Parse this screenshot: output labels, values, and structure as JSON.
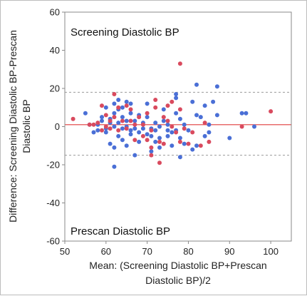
{
  "chart_data": {
    "type": "scatter",
    "xlabel_lines": [
      "Mean: (Screening Diastolic BP+Prescan",
      "Diastolic BP)/2"
    ],
    "ylabel_lines": [
      "Difference: Screening Diastolic BP-Prescan",
      "Diastolic BP"
    ],
    "xlim": [
      50,
      105
    ],
    "ylim": [
      -60,
      60
    ],
    "x_ticks": [
      50,
      60,
      70,
      80,
      90,
      100
    ],
    "y_ticks": [
      -60,
      -40,
      -20,
      0,
      20,
      40,
      60
    ],
    "annotations": {
      "top": "Screening Diastolic BP",
      "bottom": "Prescan Diastolic BP"
    },
    "reference_lines": {
      "mean_difference": 1,
      "upper_limit": 18,
      "lower_limit": -15
    },
    "colors": {
      "blue": "#4a6fd6",
      "red": "#d94a5e",
      "mean_line": "#e03c3c",
      "limit_line": "#9a9a9a"
    },
    "series": [
      {
        "color": "blue",
        "points": [
          [
            55,
            7
          ],
          [
            56,
            1
          ],
          [
            57,
            -3
          ],
          [
            58,
            1
          ],
          [
            58,
            -2
          ],
          [
            59,
            3
          ],
          [
            59,
            5
          ],
          [
            60,
            10
          ],
          [
            60,
            -1
          ],
          [
            60,
            -3
          ],
          [
            61,
            -9
          ],
          [
            61,
            2
          ],
          [
            61,
            4
          ],
          [
            62,
            -11
          ],
          [
            62,
            0
          ],
          [
            62,
            7
          ],
          [
            62,
            12
          ],
          [
            62,
            -21
          ],
          [
            63,
            -5
          ],
          [
            63,
            2
          ],
          [
            63,
            9
          ],
          [
            63,
            14
          ],
          [
            64,
            5
          ],
          [
            64,
            -1
          ],
          [
            64,
            -7
          ],
          [
            64,
            10
          ],
          [
            65,
            -10
          ],
          [
            65,
            0
          ],
          [
            65,
            3
          ],
          [
            65,
            13
          ],
          [
            66,
            -4
          ],
          [
            66,
            7
          ],
          [
            66,
            12
          ],
          [
            66,
            -2
          ],
          [
            67,
            -1
          ],
          [
            67,
            -15
          ],
          [
            67,
            3
          ],
          [
            68,
            -3
          ],
          [
            68,
            6
          ],
          [
            68,
            -8
          ],
          [
            69,
            -1
          ],
          [
            69,
            2
          ],
          [
            70,
            -4
          ],
          [
            70,
            12
          ],
          [
            70,
            5
          ],
          [
            71,
            -13
          ],
          [
            71,
            -1
          ],
          [
            71,
            -5
          ],
          [
            72,
            2
          ],
          [
            72,
            -8
          ],
          [
            72,
            -2
          ],
          [
            73,
            -11
          ],
          [
            73,
            -6
          ],
          [
            73,
            0
          ],
          [
            74,
            3
          ],
          [
            74,
            9
          ],
          [
            75,
            -2
          ],
          [
            75,
            -5
          ],
          [
            75,
            1
          ],
          [
            76,
            -10
          ],
          [
            76,
            -3
          ],
          [
            77,
            15
          ],
          [
            77,
            17
          ],
          [
            77,
            -2
          ],
          [
            77,
            7
          ],
          [
            78,
            -6
          ],
          [
            78,
            -16
          ],
          [
            78,
            4
          ],
          [
            79,
            1
          ],
          [
            79,
            -9
          ],
          [
            80,
            -2
          ],
          [
            81,
            -12
          ],
          [
            81,
            13
          ],
          [
            82,
            22
          ],
          [
            82,
            6
          ],
          [
            82,
            -10
          ],
          [
            83,
            5
          ],
          [
            84,
            -5
          ],
          [
            84,
            11
          ],
          [
            85,
            1
          ],
          [
            85,
            -3
          ],
          [
            86,
            13
          ],
          [
            87,
            6
          ],
          [
            87,
            21
          ],
          [
            90,
            -6
          ],
          [
            93,
            7
          ],
          [
            94,
            7
          ],
          [
            96,
            0
          ]
        ]
      },
      {
        "color": "red",
        "points": [
          [
            52,
            4
          ],
          [
            56,
            1
          ],
          [
            57,
            1
          ],
          [
            58,
            2
          ],
          [
            59,
            11
          ],
          [
            59,
            -2
          ],
          [
            60,
            6
          ],
          [
            60,
            0
          ],
          [
            61,
            3
          ],
          [
            61,
            -1
          ],
          [
            62,
            17
          ],
          [
            62,
            5
          ],
          [
            63,
            -2
          ],
          [
            63,
            10
          ],
          [
            64,
            3
          ],
          [
            65,
            11
          ],
          [
            65,
            -1
          ],
          [
            66,
            9
          ],
          [
            66,
            3
          ],
          [
            67,
            1
          ],
          [
            67,
            -7
          ],
          [
            68,
            5
          ],
          [
            69,
            1
          ],
          [
            69,
            -5
          ],
          [
            70,
            -7
          ],
          [
            70,
            7
          ],
          [
            71,
            -15
          ],
          [
            71,
            -2
          ],
          [
            71,
            -11
          ],
          [
            72,
            14
          ],
          [
            72,
            10
          ],
          [
            73,
            -19
          ],
          [
            73,
            -8
          ],
          [
            74,
            -9
          ],
          [
            74,
            5
          ],
          [
            75,
            11
          ],
          [
            75,
            3
          ],
          [
            76,
            0
          ],
          [
            76,
            13
          ],
          [
            77,
            -3
          ],
          [
            78,
            -8
          ],
          [
            78,
            33
          ],
          [
            78,
            9
          ],
          [
            79,
            -1
          ],
          [
            80,
            -9
          ],
          [
            81,
            -3
          ],
          [
            83,
            -10
          ],
          [
            84,
            2
          ],
          [
            85,
            -8
          ],
          [
            93,
            0
          ],
          [
            100,
            8
          ]
        ]
      }
    ]
  }
}
